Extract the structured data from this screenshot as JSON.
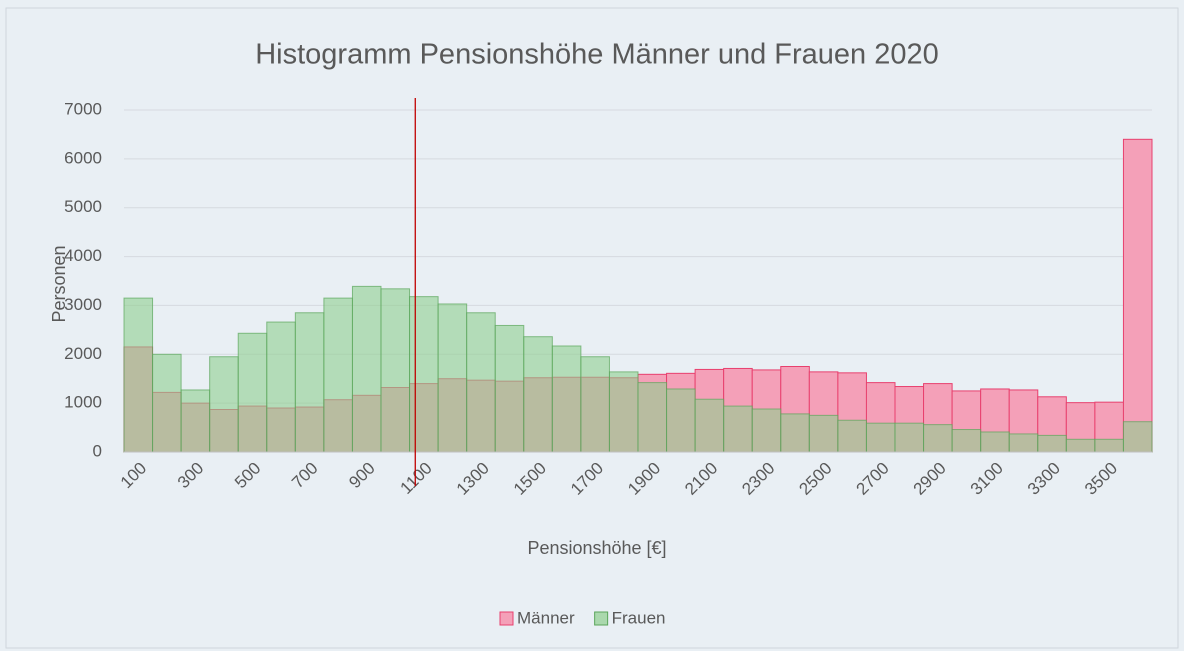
{
  "chart_data": {
    "type": "bar",
    "title": "Histogramm Pensionshöhe Männer und Frauen 2020",
    "x_label": "Pensionshöhe [€]",
    "y_label": "Personen",
    "categories": [
      100,
      null,
      300,
      null,
      500,
      null,
      700,
      null,
      900,
      null,
      1100,
      null,
      1300,
      null,
      1500,
      null,
      1700,
      null,
      1900,
      null,
      2100,
      null,
      2300,
      null,
      2500,
      null,
      2700,
      null,
      2900,
      null,
      3100,
      null,
      3300,
      null,
      3500,
      null
    ],
    "series": [
      {
        "name": "Männer",
        "color": "#f4a0b8",
        "stroke": "#e8406e",
        "values": [
          2150,
          1220,
          1000,
          870,
          940,
          900,
          920,
          1070,
          1160,
          1320,
          1400,
          1500,
          1470,
          1450,
          1520,
          1530,
          1530,
          1520,
          1590,
          1610,
          1690,
          1710,
          1680,
          1750,
          1640,
          1620,
          1420,
          1340,
          1400,
          1250,
          1290,
          1270,
          1130,
          1010,
          1020,
          6400
        ]
      },
      {
        "name": "Frauen",
        "color": "#8fcf8f",
        "stroke": "#5aa55a",
        "values": [
          3150,
          2000,
          1270,
          1950,
          2430,
          2660,
          2850,
          3150,
          3390,
          3340,
          3180,
          3030,
          2850,
          2590,
          2360,
          2170,
          1950,
          1640,
          1420,
          1290,
          1080,
          940,
          880,
          780,
          750,
          650,
          590,
          590,
          560,
          460,
          410,
          370,
          340,
          260,
          260,
          620
        ]
      }
    ],
    "reference_line": {
      "x": 1070,
      "color": "#c00000"
    },
    "ylim": [
      0,
      7000
    ],
    "yticks": [
      0,
      1000,
      2000,
      3000,
      4000,
      5000,
      6000,
      7000
    ],
    "grid": true,
    "legend": "bottom"
  }
}
